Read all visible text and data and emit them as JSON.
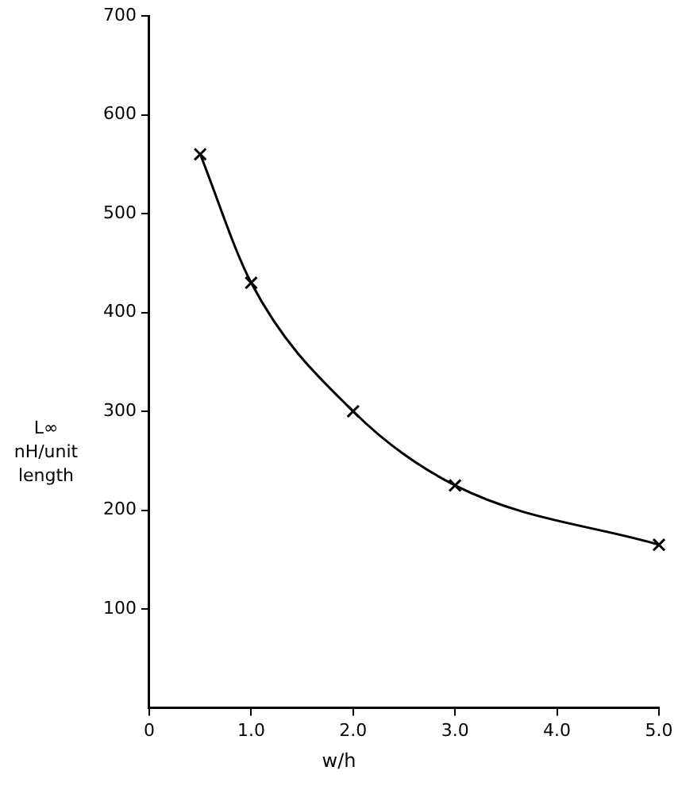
{
  "chart_data": {
    "type": "line",
    "xlabel": "w/h",
    "ylabel": "L∞ nH/unit length",
    "x": [
      0.5,
      1.0,
      2.0,
      3.0,
      5.0
    ],
    "series": [
      {
        "color": "#000000",
        "values": [
          560,
          430,
          300,
          225,
          165
        ]
      }
    ],
    "xlim": [
      0,
      5
    ],
    "xticks": [
      0,
      {
        "value": 1,
        "label": "1.0"
      },
      {
        "value": 2,
        "label": "2.0"
      },
      {
        "value": 3,
        "label": "3.0"
      },
      {
        "value": 4,
        "label": "4.0"
      },
      {
        "value": 5,
        "label": "5.0"
      }
    ],
    "ylim": [
      0,
      700
    ],
    "yticks": [
      100,
      200,
      300,
      400,
      500,
      600,
      700
    ],
    "grid": false,
    "legend": false,
    "marker": "cross",
    "line_style": "solid"
  }
}
